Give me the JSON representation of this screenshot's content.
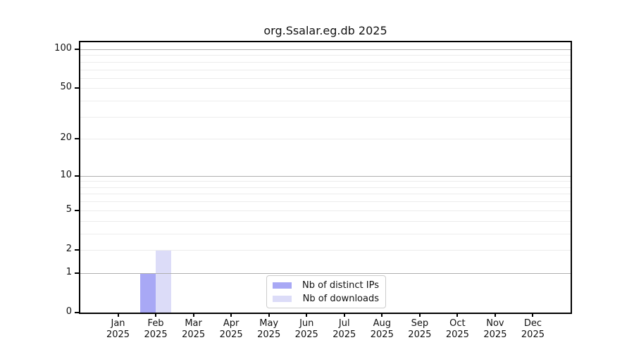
{
  "title": "org.Ssalar.eg.db 2025",
  "chart_data": {
    "type": "bar",
    "title": "org.Ssalar.eg.db 2025",
    "categories": [
      "Jan 2025",
      "Feb 2025",
      "Mar 2025",
      "Apr 2025",
      "May 2025",
      "Jun 2025",
      "Jul 2025",
      "Aug 2025",
      "Sep 2025",
      "Oct 2025",
      "Nov 2025",
      "Dec 2025"
    ],
    "series": [
      {
        "name": "Nb of distinct IPs",
        "color": "#a8a8f5",
        "values": [
          0,
          1,
          0,
          0,
          0,
          0,
          0,
          0,
          0,
          0,
          0,
          0
        ]
      },
      {
        "name": "Nb of downloads",
        "color": "#dcdcf8",
        "values": [
          0,
          2,
          0,
          0,
          0,
          0,
          0,
          0,
          0,
          0,
          0,
          0
        ]
      }
    ],
    "xlabel": "",
    "ylabel": "",
    "yscale": "log1p",
    "ylim": [
      0,
      113
    ],
    "yticks": [
      0,
      1,
      2,
      5,
      10,
      20,
      50,
      100
    ],
    "major_gridlines": [
      1,
      10,
      100
    ],
    "minor_gridlines": [
      2,
      3,
      4,
      5,
      6,
      7,
      8,
      9,
      20,
      30,
      40,
      50,
      60,
      70,
      80,
      90
    ],
    "grid": "horizontal",
    "legend_position": "bottom-center"
  },
  "colors": {
    "distinct_ips_bar": "#a8a8f5",
    "downloads_bar": "#dcdcf8",
    "major_grid": "#b0b0b0",
    "minor_grid": "#ececec",
    "axis_spine": "#000000",
    "legend_border": "#cccccc"
  }
}
